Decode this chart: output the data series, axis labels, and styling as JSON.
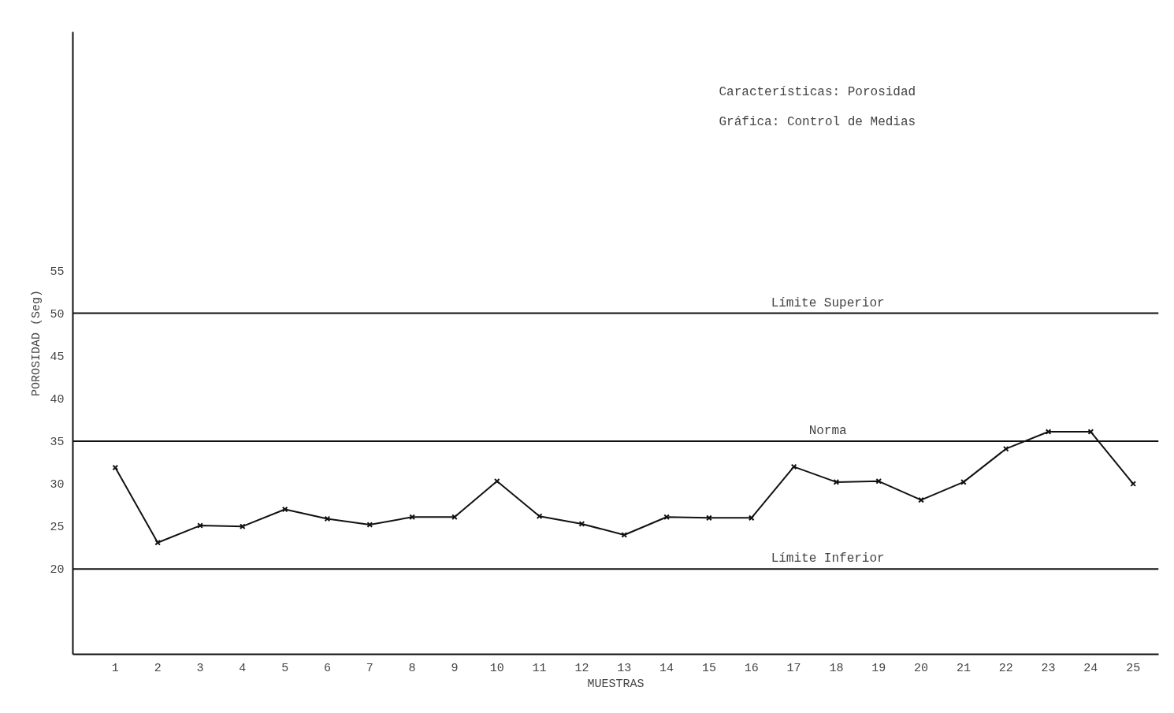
{
  "chart_data": {
    "type": "line",
    "xlabel": "MUESTRAS",
    "ylabel": "POROSIDAD (Seg)",
    "x": [
      1,
      2,
      3,
      4,
      5,
      6,
      7,
      8,
      9,
      10,
      11,
      12,
      13,
      14,
      15,
      16,
      17,
      18,
      19,
      20,
      21,
      22,
      23,
      24,
      25
    ],
    "series": [
      {
        "color": "#111111",
        "values": [
          31.9,
          23.1,
          25.1,
          25.0,
          27.0,
          25.9,
          25.2,
          26.1,
          26.1,
          30.3,
          26.2,
          25.3,
          24.0,
          26.1,
          26.0,
          26.0,
          32.0,
          30.2,
          30.3,
          28.1,
          30.2,
          34.1,
          36.1,
          36.1,
          30.0
        ]
      }
    ],
    "xlim": [
      0,
      25.6
    ],
    "xticks": [
      1,
      2,
      3,
      4,
      5,
      6,
      7,
      8,
      9,
      10,
      11,
      12,
      13,
      14,
      15,
      16,
      17,
      18,
      19,
      20,
      21,
      22,
      23,
      24,
      25
    ],
    "ylim": [
      10,
      83
    ],
    "yticks": [
      20,
      25,
      30,
      35,
      40,
      45,
      50,
      55
    ],
    "ref_lines": [
      {
        "axis": "y",
        "value": 50,
        "label": "Límite Superior"
      },
      {
        "axis": "y",
        "value": 35,
        "label": "Norma"
      },
      {
        "axis": "y",
        "value": 20,
        "label": "Límite Inferior"
      }
    ],
    "annotations": [
      "Características:  Porosidad",
      "Gráfica: Control de Medias"
    ],
    "marker": "cross",
    "line_style": "solid",
    "grid": false
  }
}
